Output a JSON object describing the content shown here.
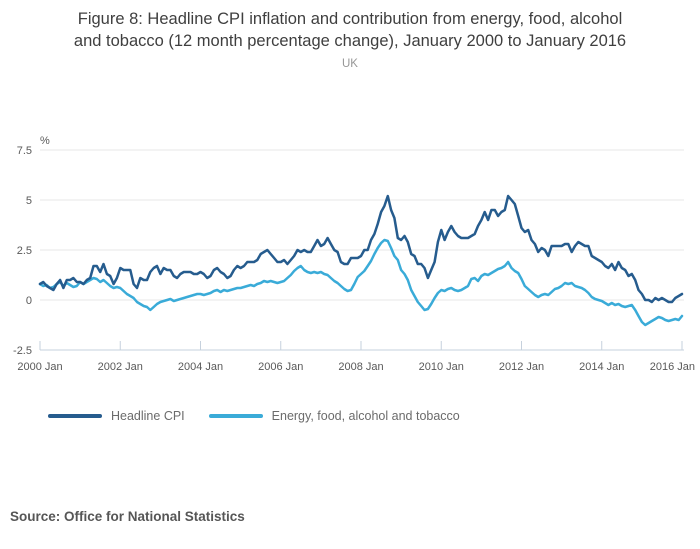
{
  "title": {
    "line1": "Figure 8: Headline CPI inflation and contribution from energy, food, alcohol",
    "line2": "and tobacco (12 month percentage change), January 2000 to January 2016",
    "subtitle": "UK"
  },
  "source": {
    "label": "Source: Office for National Statistics"
  },
  "colors": {
    "headline_cpi": "#265c8e",
    "energy_food": "#3aabd8",
    "grid": "#e7e7e7",
    "axis": "#c6d1dd",
    "tick_text": "#595959"
  },
  "chart_data": {
    "type": "line",
    "title": "Figure 8: Headline CPI inflation and contribution from energy, food, alcohol and tobacco (12 month percentage change), January 2000 to January 2016",
    "subtitle": "UK",
    "unit_label": "%",
    "x_start": "2000 Jan",
    "x_end": "2016 Jan",
    "x_frequency": "monthly",
    "x_tick_labels": [
      "2000 Jan",
      "2002 Jan",
      "2004 Jan",
      "2006 Jan",
      "2008 Jan",
      "2010 Jan",
      "2012 Jan",
      "2014 Jan",
      "2016 Jan"
    ],
    "y_ticks": [
      7.5,
      5,
      2.5,
      0,
      -2.5
    ],
    "ylim": [
      -2.5,
      7.5
    ],
    "grid": true,
    "legend_position": "bottom-left",
    "series": [
      {
        "name": "Headline CPI",
        "color": "#265c8e",
        "values": [
          0.8,
          0.9,
          0.7,
          0.6,
          0.5,
          0.8,
          1.0,
          0.6,
          1.0,
          1.0,
          1.1,
          0.9,
          0.9,
          0.8,
          1.0,
          1.1,
          1.7,
          1.7,
          1.4,
          1.8,
          1.3,
          1.2,
          0.8,
          1.1,
          1.6,
          1.5,
          1.5,
          1.5,
          0.8,
          0.6,
          1.1,
          1.0,
          1.0,
          1.4,
          1.6,
          1.7,
          1.3,
          1.6,
          1.5,
          1.5,
          1.2,
          1.1,
          1.3,
          1.4,
          1.4,
          1.4,
          1.3,
          1.3,
          1.4,
          1.3,
          1.1,
          1.2,
          1.5,
          1.6,
          1.4,
          1.3,
          1.1,
          1.2,
          1.5,
          1.7,
          1.6,
          1.7,
          1.9,
          1.9,
          1.9,
          2.0,
          2.3,
          2.4,
          2.5,
          2.3,
          2.1,
          1.9,
          1.9,
          2.0,
          1.8,
          2.0,
          2.2,
          2.5,
          2.4,
          2.5,
          2.4,
          2.4,
          2.7,
          3.0,
          2.7,
          2.8,
          3.1,
          2.8,
          2.5,
          2.4,
          1.9,
          1.8,
          1.8,
          2.1,
          2.1,
          2.1,
          2.2,
          2.5,
          2.5,
          3.0,
          3.3,
          3.8,
          4.4,
          4.7,
          5.2,
          4.5,
          4.1,
          3.1,
          3.0,
          3.2,
          2.9,
          2.3,
          2.2,
          1.8,
          1.8,
          1.6,
          1.1,
          1.5,
          1.9,
          2.9,
          3.5,
          3.0,
          3.4,
          3.7,
          3.4,
          3.2,
          3.1,
          3.1,
          3.1,
          3.2,
          3.3,
          3.7,
          4.0,
          4.4,
          4.0,
          4.5,
          4.5,
          4.2,
          4.4,
          4.5,
          5.2,
          5.0,
          4.8,
          4.2,
          3.6,
          3.4,
          3.5,
          3.0,
          2.8,
          2.4,
          2.6,
          2.5,
          2.2,
          2.7,
          2.7,
          2.7,
          2.7,
          2.8,
          2.8,
          2.4,
          2.7,
          2.9,
          2.8,
          2.7,
          2.7,
          2.2,
          2.1,
          2.0,
          1.9,
          1.7,
          1.6,
          1.8,
          1.5,
          1.9,
          1.6,
          1.5,
          1.2,
          1.3,
          1.0,
          0.5,
          0.3,
          0.0,
          0.0,
          -0.1,
          0.1,
          0.0,
          0.1,
          0.0,
          -0.1,
          -0.1,
          0.1,
          0.2,
          0.3
        ]
      },
      {
        "name": "Energy, food, alcohol and tobacco",
        "color": "#3aabd8",
        "values": [
          0.8,
          0.7,
          0.75,
          0.6,
          0.65,
          0.8,
          0.9,
          0.7,
          0.85,
          0.75,
          0.65,
          0.7,
          0.9,
          0.8,
          0.9,
          1.0,
          1.1,
          1.05,
          0.9,
          1.0,
          0.85,
          0.7,
          0.6,
          0.65,
          0.6,
          0.45,
          0.3,
          0.2,
          0.1,
          -0.1,
          -0.2,
          -0.3,
          -0.35,
          -0.5,
          -0.35,
          -0.2,
          -0.1,
          -0.05,
          0.0,
          0.05,
          -0.05,
          0.0,
          0.05,
          0.1,
          0.15,
          0.2,
          0.25,
          0.3,
          0.3,
          0.25,
          0.3,
          0.35,
          0.45,
          0.5,
          0.4,
          0.5,
          0.45,
          0.5,
          0.55,
          0.6,
          0.6,
          0.65,
          0.7,
          0.75,
          0.7,
          0.8,
          0.85,
          0.95,
          0.9,
          0.95,
          0.9,
          0.85,
          0.9,
          0.95,
          1.1,
          1.25,
          1.45,
          1.6,
          1.7,
          1.5,
          1.4,
          1.35,
          1.4,
          1.35,
          1.4,
          1.3,
          1.25,
          1.1,
          0.95,
          0.85,
          0.7,
          0.55,
          0.45,
          0.5,
          0.8,
          1.15,
          1.3,
          1.45,
          1.7,
          1.95,
          2.3,
          2.6,
          2.85,
          3.0,
          2.95,
          2.6,
          2.2,
          2.0,
          1.5,
          1.3,
          1.0,
          0.5,
          0.2,
          -0.1,
          -0.3,
          -0.5,
          -0.45,
          -0.2,
          0.1,
          0.35,
          0.5,
          0.45,
          0.55,
          0.6,
          0.5,
          0.45,
          0.5,
          0.6,
          0.7,
          1.05,
          1.1,
          0.95,
          1.2,
          1.3,
          1.25,
          1.35,
          1.45,
          1.55,
          1.6,
          1.7,
          1.9,
          1.6,
          1.45,
          1.35,
          1.05,
          0.7,
          0.55,
          0.4,
          0.25,
          0.15,
          0.25,
          0.3,
          0.25,
          0.4,
          0.55,
          0.6,
          0.7,
          0.85,
          0.8,
          0.85,
          0.7,
          0.65,
          0.6,
          0.5,
          0.35,
          0.15,
          0.05,
          0.0,
          -0.05,
          -0.15,
          -0.25,
          -0.15,
          -0.25,
          -0.2,
          -0.3,
          -0.35,
          -0.3,
          -0.25,
          -0.5,
          -0.8,
          -1.1,
          -1.25,
          -1.15,
          -1.05,
          -0.95,
          -0.85,
          -0.9,
          -1.0,
          -1.05,
          -1.0,
          -0.95,
          -1.0,
          -0.8
        ]
      }
    ]
  }
}
